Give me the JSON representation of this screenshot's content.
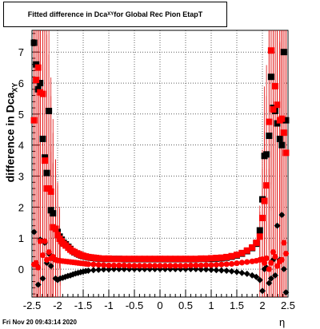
{
  "title": {
    "text": "Fitted difference in Dca",
    "sub": "XY",
    "rest": " for Global Rec Pion EtapT"
  },
  "ylabel": {
    "text": "difference in Dca",
    "sub": "XY"
  },
  "xlabel": "η",
  "datestamp": "Fri Nov 20 09:43:14 2020",
  "chart_data": {
    "type": "scatter",
    "xlim": [
      -2.5,
      2.5
    ],
    "ylim": [
      -0.9,
      7.7
    ],
    "grid": true,
    "xticks": [
      "-2.5",
      "-2",
      "-1.5",
      "-1",
      "-0.5",
      "0",
      "0.5",
      "1",
      "1.5",
      "2",
      "2.5"
    ],
    "xtick_values": [
      -2.5,
      -2,
      -1.5,
      -1,
      -0.5,
      0,
      0.5,
      1,
      1.5,
      2,
      2.5
    ],
    "yticks": [
      "0",
      "1",
      "2",
      "3",
      "4",
      "5",
      "6",
      "7"
    ],
    "ytick_values": [
      0,
      1,
      2,
      3,
      4,
      5,
      6,
      7
    ],
    "series": [
      {
        "color": "#000000",
        "marker": "square",
        "points": [
          [
            -2.46,
            7.3
          ],
          [
            -2.42,
            6.6
          ],
          [
            -2.38,
            5.8
          ],
          [
            -2.34,
            6.0
          ],
          [
            -2.29,
            4.2
          ],
          [
            -2.25,
            3.6
          ],
          [
            -2.21,
            3.1
          ],
          [
            -2.17,
            5.1
          ],
          [
            -2.13,
            1.9
          ],
          [
            -2.09,
            1.8
          ],
          [
            -2.04,
            1.3
          ],
          [
            -2.0,
            1.2
          ],
          [
            -1.96,
            1.05
          ],
          [
            -1.92,
            0.95
          ],
          [
            -1.88,
            0.85
          ],
          [
            -1.84,
            0.8
          ],
          [
            -1.79,
            0.72
          ],
          [
            -1.75,
            0.65
          ],
          [
            -1.71,
            0.58
          ],
          [
            -1.67,
            0.54
          ],
          [
            -1.62,
            0.5
          ],
          [
            -1.58,
            0.47
          ],
          [
            -1.54,
            0.44
          ],
          [
            -1.5,
            0.42
          ],
          [
            -1.45,
            0.4
          ],
          [
            -1.4,
            0.38
          ],
          [
            -1.35,
            0.37
          ],
          [
            -1.3,
            0.36
          ],
          [
            -1.25,
            0.35
          ],
          [
            -1.2,
            0.34
          ],
          [
            -1.1,
            0.33
          ],
          [
            -1.0,
            0.33
          ],
          [
            -0.9,
            0.33
          ],
          [
            -0.8,
            0.33
          ],
          [
            -0.7,
            0.32
          ],
          [
            -0.6,
            0.32
          ],
          [
            -0.5,
            0.32
          ],
          [
            -0.4,
            0.32
          ],
          [
            -0.3,
            0.32
          ],
          [
            -0.2,
            0.32
          ],
          [
            -0.1,
            0.32
          ],
          [
            0.0,
            0.32
          ],
          [
            0.1,
            0.32
          ],
          [
            0.2,
            0.32
          ],
          [
            0.3,
            0.32
          ],
          [
            0.4,
            0.32
          ],
          [
            0.5,
            0.32
          ],
          [
            0.6,
            0.32
          ],
          [
            0.7,
            0.32
          ],
          [
            0.8,
            0.33
          ],
          [
            0.9,
            0.33
          ],
          [
            1.0,
            0.33
          ],
          [
            1.1,
            0.34
          ],
          [
            1.2,
            0.35
          ],
          [
            1.3,
            0.37
          ],
          [
            1.4,
            0.4
          ],
          [
            1.5,
            0.44
          ],
          [
            1.6,
            0.5
          ],
          [
            1.7,
            0.58
          ],
          [
            1.8,
            0.68
          ],
          [
            1.88,
            0.82
          ],
          [
            1.95,
            1.25
          ],
          [
            2.0,
            2.25
          ],
          [
            2.04,
            3.65
          ],
          [
            2.08,
            3.7
          ],
          [
            2.13,
            4.3
          ],
          [
            2.17,
            6.2
          ],
          [
            2.21,
            5.2
          ],
          [
            2.25,
            5.1
          ],
          [
            2.29,
            4.7
          ],
          [
            2.34,
            4.2
          ],
          [
            2.38,
            4.0
          ],
          [
            2.42,
            7.0
          ],
          [
            2.46,
            4.8
          ]
        ]
      },
      {
        "color": "#000000",
        "marker": "diamond",
        "points": [
          [
            -2.46,
            1.2
          ],
          [
            -2.42,
            0.15
          ],
          [
            -2.38,
            -0.5
          ],
          [
            -2.34,
            0.95
          ],
          [
            -2.29,
            -0.3
          ],
          [
            -2.25,
            0.85
          ],
          [
            -2.21,
            0.2
          ],
          [
            -2.17,
            0.5
          ],
          [
            -2.13,
            0.1
          ],
          [
            -2.09,
            0.35
          ],
          [
            -2.04,
            -0.3
          ],
          [
            -2.0,
            -0.35
          ],
          [
            -1.95,
            -0.3
          ],
          [
            -1.9,
            -0.28
          ],
          [
            -1.85,
            -0.25
          ],
          [
            -1.8,
            -0.22
          ],
          [
            -1.75,
            -0.2
          ],
          [
            -1.7,
            -0.17
          ],
          [
            -1.65,
            -0.14
          ],
          [
            -1.6,
            -0.12
          ],
          [
            -1.55,
            -0.1
          ],
          [
            -1.5,
            -0.08
          ],
          [
            -1.45,
            -0.06
          ],
          [
            -1.4,
            -0.05
          ],
          [
            -1.3,
            -0.03
          ],
          [
            -1.2,
            -0.02
          ],
          [
            -1.1,
            -0.01
          ],
          [
            -1.0,
            -0.01
          ],
          [
            -0.9,
            0.0
          ],
          [
            -0.8,
            0.0
          ],
          [
            -0.7,
            0.0
          ],
          [
            -0.6,
            0.0
          ],
          [
            -0.5,
            0.0
          ],
          [
            -0.4,
            0.0
          ],
          [
            -0.3,
            0.0
          ],
          [
            -0.2,
            0.0
          ],
          [
            -0.1,
            0.0
          ],
          [
            0.0,
            0.0
          ],
          [
            0.1,
            0.0
          ],
          [
            0.2,
            0.0
          ],
          [
            0.3,
            0.0
          ],
          [
            0.4,
            0.0
          ],
          [
            0.5,
            0.0
          ],
          [
            0.6,
            0.0
          ],
          [
            0.7,
            0.0
          ],
          [
            0.8,
            -0.01
          ],
          [
            0.9,
            -0.01
          ],
          [
            1.0,
            -0.02
          ],
          [
            1.1,
            -0.03
          ],
          [
            1.2,
            -0.04
          ],
          [
            1.3,
            -0.05
          ],
          [
            1.4,
            -0.07
          ],
          [
            1.5,
            -0.09
          ],
          [
            1.6,
            -0.12
          ],
          [
            1.7,
            -0.15
          ],
          [
            1.8,
            -0.2
          ],
          [
            1.88,
            -0.25
          ],
          [
            1.95,
            -0.35
          ],
          [
            2.0,
            -0.7
          ],
          [
            2.04,
            0.0
          ],
          [
            2.08,
            0.05
          ],
          [
            2.13,
            -0.45
          ],
          [
            2.17,
            -0.3
          ],
          [
            2.21,
            0.3
          ],
          [
            2.25,
            -0.2
          ],
          [
            2.29,
            1.4
          ],
          [
            2.34,
            0.3
          ],
          [
            2.38,
            1.75
          ],
          [
            2.42,
            0.0
          ],
          [
            2.46,
            -0.75
          ]
        ]
      },
      {
        "color": "#ff0000",
        "marker": "square",
        "points": [
          [
            -2.46,
            4.8
          ],
          [
            -2.42,
            6.1
          ],
          [
            -2.38,
            6.5
          ],
          [
            -2.34,
            5.7
          ],
          [
            -2.29,
            5.65
          ],
          [
            -2.25,
            3.5
          ],
          [
            -2.21,
            2.6
          ],
          [
            -2.17,
            2.6
          ],
          [
            -2.13,
            2.5
          ],
          [
            -2.09,
            1.35
          ],
          [
            -2.04,
            1.3
          ],
          [
            -2.0,
            1.1
          ],
          [
            -1.96,
            0.98
          ],
          [
            -1.92,
            0.9
          ],
          [
            -1.88,
            0.82
          ],
          [
            -1.84,
            0.76
          ],
          [
            -1.79,
            0.69
          ],
          [
            -1.75,
            0.63
          ],
          [
            -1.71,
            0.58
          ],
          [
            -1.67,
            0.55
          ],
          [
            -1.62,
            0.51
          ],
          [
            -1.58,
            0.48
          ],
          [
            -1.54,
            0.45
          ],
          [
            -1.5,
            0.43
          ],
          [
            -1.45,
            0.41
          ],
          [
            -1.4,
            0.39
          ],
          [
            -1.35,
            0.38
          ],
          [
            -1.3,
            0.37
          ],
          [
            -1.25,
            0.36
          ],
          [
            -1.2,
            0.35
          ],
          [
            -1.1,
            0.34
          ],
          [
            -1.0,
            0.34
          ],
          [
            -0.9,
            0.33
          ],
          [
            -0.8,
            0.33
          ],
          [
            -0.7,
            0.33
          ],
          [
            -0.6,
            0.33
          ],
          [
            -0.5,
            0.33
          ],
          [
            -0.4,
            0.33
          ],
          [
            -0.3,
            0.33
          ],
          [
            -0.2,
            0.33
          ],
          [
            -0.1,
            0.33
          ],
          [
            0.0,
            0.33
          ],
          [
            0.1,
            0.33
          ],
          [
            0.2,
            0.33
          ],
          [
            0.3,
            0.33
          ],
          [
            0.4,
            0.33
          ],
          [
            0.5,
            0.33
          ],
          [
            0.6,
            0.33
          ],
          [
            0.7,
            0.33
          ],
          [
            0.8,
            0.34
          ],
          [
            0.9,
            0.34
          ],
          [
            1.0,
            0.35
          ],
          [
            1.1,
            0.36
          ],
          [
            1.2,
            0.37
          ],
          [
            1.3,
            0.39
          ],
          [
            1.4,
            0.42
          ],
          [
            1.5,
            0.46
          ],
          [
            1.6,
            0.52
          ],
          [
            1.7,
            0.6
          ],
          [
            1.8,
            0.7
          ],
          [
            1.88,
            0.85
          ],
          [
            1.95,
            1.05
          ],
          [
            2.0,
            1.65
          ],
          [
            2.04,
            2.2
          ],
          [
            2.08,
            2.7
          ],
          [
            2.13,
            4.75
          ],
          [
            2.17,
            7.05
          ],
          [
            2.21,
            5.15
          ],
          [
            2.25,
            5.9
          ],
          [
            2.29,
            5.3
          ],
          [
            2.34,
            4.8
          ],
          [
            2.38,
            4.85
          ],
          [
            2.42,
            4.4
          ],
          [
            2.46,
            3.75
          ]
        ]
      },
      {
        "color": "#ff0000",
        "marker": "circle",
        "points": [
          [
            -2.46,
            0.15
          ],
          [
            -2.42,
            0.2
          ],
          [
            -2.38,
            0.05
          ],
          [
            -2.34,
            0.9
          ],
          [
            -2.29,
            0.45
          ],
          [
            -2.25,
            0.9
          ],
          [
            -2.21,
            0.3
          ],
          [
            -2.17,
            0.55
          ],
          [
            -2.13,
            0.35
          ],
          [
            -2.09,
            0.4
          ],
          [
            -2.04,
            0.3
          ],
          [
            -2.0,
            0.28
          ],
          [
            -1.95,
            0.27
          ],
          [
            -1.9,
            0.26
          ],
          [
            -1.85,
            0.25
          ],
          [
            -1.8,
            0.24
          ],
          [
            -1.75,
            0.23
          ],
          [
            -1.7,
            0.22
          ],
          [
            -1.65,
            0.21
          ],
          [
            -1.6,
            0.2
          ],
          [
            -1.55,
            0.19
          ],
          [
            -1.5,
            0.18
          ],
          [
            -1.45,
            0.17
          ],
          [
            -1.4,
            0.16
          ],
          [
            -1.3,
            0.15
          ],
          [
            -1.2,
            0.14
          ],
          [
            -1.1,
            0.13
          ],
          [
            -1.0,
            0.12
          ],
          [
            -0.9,
            0.12
          ],
          [
            -0.8,
            0.12
          ],
          [
            -0.7,
            0.12
          ],
          [
            -0.6,
            0.11
          ],
          [
            -0.5,
            0.11
          ],
          [
            -0.4,
            0.11
          ],
          [
            -0.3,
            0.11
          ],
          [
            -0.2,
            0.11
          ],
          [
            -0.1,
            0.11
          ],
          [
            0.0,
            0.11
          ],
          [
            0.1,
            0.11
          ],
          [
            0.2,
            0.11
          ],
          [
            0.3,
            0.11
          ],
          [
            0.4,
            0.11
          ],
          [
            0.5,
            0.11
          ],
          [
            0.6,
            0.12
          ],
          [
            0.7,
            0.12
          ],
          [
            0.8,
            0.12
          ],
          [
            0.9,
            0.13
          ],
          [
            1.0,
            0.13
          ],
          [
            1.1,
            0.14
          ],
          [
            1.2,
            0.15
          ],
          [
            1.3,
            0.16
          ],
          [
            1.4,
            0.17
          ],
          [
            1.5,
            0.19
          ],
          [
            1.6,
            0.21
          ],
          [
            1.7,
            0.23
          ],
          [
            1.8,
            0.25
          ],
          [
            1.88,
            0.27
          ],
          [
            1.95,
            0.3
          ],
          [
            2.0,
            0.32
          ],
          [
            2.04,
            0.2
          ],
          [
            2.08,
            0.35
          ],
          [
            2.13,
            0.0
          ],
          [
            2.17,
            0.2
          ],
          [
            2.21,
            0.55
          ],
          [
            2.25,
            0.4
          ],
          [
            2.29,
            0.1
          ],
          [
            2.34,
            0.25
          ],
          [
            2.38,
            0.3
          ],
          [
            2.42,
            0.85
          ],
          [
            2.46,
            0.5
          ]
        ]
      }
    ],
    "error_bar_color": "#e01010"
  }
}
